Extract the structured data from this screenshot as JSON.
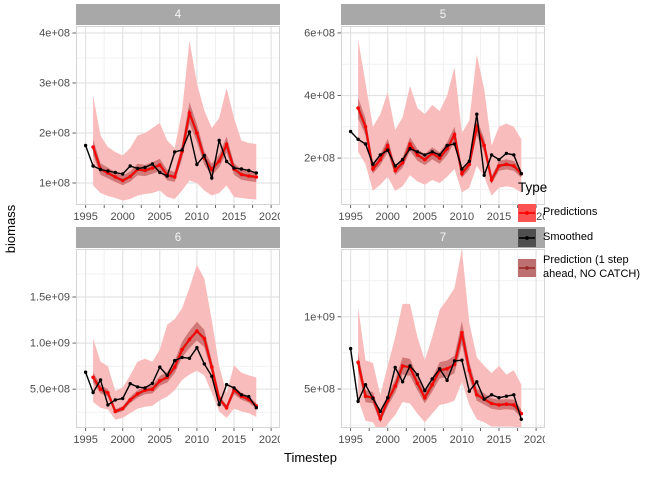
{
  "figure": {
    "y_axis_title": "biomass",
    "x_axis_title": "Timestep"
  },
  "legend": {
    "title": "Type",
    "items": [
      {
        "label": "Predictions",
        "fill": "#fb5252",
        "line": "#ff0000"
      },
      {
        "label": "Smoothed",
        "fill": "#4f4f4f",
        "line": "#000000"
      },
      {
        "label": "Prediction (1 step\n ahead, NO CATCH)",
        "fill": "#bc7070",
        "line": "#9b2a2a"
      }
    ]
  },
  "colors": {
    "prediction_line": "#ff0000",
    "smoothed_line": "#000000",
    "one_step_line": "#8b2222",
    "prediction_ribbon": "#f9bcbc",
    "one_step_band": "rgba(160,40,40,0.45)",
    "grid_major": "#e3e3e3",
    "grid_minor": "#f1f1f1",
    "panel_border": "#d5d5d5",
    "tick_text": "#4d4d4d",
    "strip_fill": "#a8a8a8",
    "strip_text": "#f5f5f5"
  },
  "chart_data": {
    "type": "line",
    "units": "values in 1e8 biomass",
    "band_frac": 0.09,
    "x": {
      "xlim": [
        1993.7,
        2021.2
      ],
      "ticks": [
        1995,
        2000,
        2005,
        2010,
        2015,
        2020
      ],
      "minor": [
        1997.5,
        2002.5,
        2007.5,
        2012.5,
        2017.5
      ],
      "smoothed_years": [
        1995,
        1996,
        1997,
        1998,
        1999,
        2000,
        2001,
        2002,
        2003,
        2004,
        2005,
        2006,
        2007,
        2008,
        2009,
        2010,
        2011,
        2012,
        2013,
        2014,
        2015,
        2016,
        2017,
        2018
      ],
      "prediction_years": [
        1996,
        1997,
        1998,
        1999,
        2000,
        2001,
        2002,
        2003,
        2004,
        2005,
        2006,
        2007,
        2008,
        2009,
        2010,
        2011,
        2012,
        2013,
        2014,
        2015,
        2016,
        2017,
        2018
      ]
    },
    "facets": [
      {
        "label": "4",
        "ylim": [
          0.56,
          4.14
        ],
        "yticks": [
          {
            "v": 1,
            "label": "1e+08"
          },
          {
            "v": 2,
            "label": "2e+08"
          },
          {
            "v": 3,
            "label": "3e+08"
          },
          {
            "v": 4,
            "label": "4e+08"
          }
        ],
        "yminor": [
          1.5,
          2.5,
          3.5
        ],
        "smoothed": [
          1.75,
          1.34,
          1.27,
          1.24,
          1.21,
          1.18,
          1.34,
          1.29,
          1.31,
          1.38,
          1.21,
          1.14,
          1.62,
          1.66,
          2.02,
          1.37,
          1.55,
          1.1,
          1.85,
          1.43,
          1.3,
          1.28,
          1.25,
          1.2
        ],
        "predictions": [
          1.72,
          1.28,
          1.2,
          1.12,
          1.05,
          1.13,
          1.27,
          1.25,
          1.3,
          1.36,
          1.16,
          1.12,
          1.63,
          2.4,
          2.0,
          1.5,
          1.27,
          1.44,
          1.77,
          1.28,
          1.17,
          1.14,
          1.12
        ],
        "ribbon_upper": [
          2.75,
          1.95,
          1.72,
          1.62,
          1.55,
          1.7,
          1.95,
          2.0,
          2.1,
          2.2,
          1.85,
          1.7,
          2.45,
          3.85,
          3.0,
          2.45,
          2.1,
          2.3,
          2.9,
          2.3,
          1.85,
          1.8,
          1.78
        ],
        "ribbon_lower": [
          0.95,
          0.8,
          0.74,
          0.7,
          0.65,
          0.68,
          0.75,
          0.78,
          0.8,
          0.85,
          0.72,
          0.68,
          0.85,
          1.05,
          1.0,
          0.85,
          0.75,
          0.8,
          0.95,
          0.72,
          0.7,
          0.68,
          0.67
        ]
      },
      {
        "label": "5",
        "ylim": [
          0.5,
          6.22
        ],
        "yticks": [
          {
            "v": 2,
            "label": "2e+08"
          },
          {
            "v": 4,
            "label": "4e+08"
          },
          {
            "v": 6,
            "label": "6e+08"
          }
        ],
        "yminor": [
          1,
          3,
          5
        ],
        "smoothed": [
          2.85,
          2.6,
          2.45,
          1.8,
          2.1,
          2.25,
          1.75,
          1.95,
          2.3,
          2.2,
          2.1,
          2.2,
          2.1,
          2.4,
          2.45,
          1.65,
          1.9,
          3.4,
          1.45,
          2.1,
          1.95,
          2.15,
          2.1,
          1.5
        ],
        "predictions": [
          3.6,
          3.0,
          1.65,
          1.95,
          2.4,
          1.6,
          1.85,
          2.45,
          2.1,
          1.95,
          2.15,
          2.0,
          2.3,
          2.75,
          1.5,
          1.8,
          3.0,
          2.4,
          1.3,
          1.75,
          1.8,
          1.75,
          1.5
        ],
        "ribbon_upper": [
          5.8,
          4.4,
          3.0,
          3.4,
          4.1,
          2.9,
          3.3,
          4.3,
          3.6,
          3.4,
          3.7,
          3.5,
          4.0,
          4.9,
          2.8,
          3.2,
          5.3,
          4.2,
          2.4,
          3.0,
          3.1,
          3.0,
          2.6
        ],
        "ribbon_lower": [
          2.2,
          1.8,
          0.95,
          1.15,
          1.4,
          0.95,
          1.1,
          1.45,
          1.25,
          1.15,
          1.3,
          1.2,
          1.4,
          1.65,
          0.9,
          1.05,
          1.75,
          1.4,
          0.8,
          1.05,
          1.1,
          1.05,
          0.9
        ]
      },
      {
        "label": "6",
        "ylim": [
          0.8,
          20.2
        ],
        "yticks": [
          {
            "v": 5,
            "label": "5.0e+08"
          },
          {
            "v": 10,
            "label": "1.0e+09"
          },
          {
            "v": 15,
            "label": "1.5e+09"
          }
        ],
        "yminor": [
          2.5,
          7.5,
          12.5,
          17.5
        ],
        "smoothed": [
          6.85,
          4.65,
          6.0,
          3.3,
          3.85,
          4.0,
          5.6,
          5.25,
          5.15,
          5.65,
          7.4,
          6.5,
          8.1,
          8.45,
          8.35,
          9.5,
          7.75,
          6.4,
          3.35,
          5.5,
          5.15,
          4.4,
          4.2,
          3.0
        ],
        "predictions": [
          6.3,
          5.0,
          4.6,
          2.6,
          2.9,
          3.85,
          4.5,
          4.9,
          5.0,
          5.9,
          6.3,
          7.4,
          9.3,
          10.4,
          11.3,
          10.5,
          7.4,
          4.0,
          3.0,
          4.9,
          4.25,
          3.9,
          3.2
        ],
        "ribbon_upper": [
          10.5,
          8.0,
          7.5,
          4.8,
          5.2,
          6.5,
          8.0,
          8.3,
          8.0,
          9.3,
          12.0,
          12.6,
          13.8,
          16.0,
          18.5,
          17.0,
          12.5,
          7.5,
          4.6,
          7.6,
          6.8,
          6.5,
          6.3
        ],
        "ribbon_lower": [
          3.6,
          3.0,
          2.8,
          1.7,
          1.9,
          2.4,
          2.9,
          3.1,
          3.2,
          3.8,
          4.2,
          4.9,
          6.0,
          6.6,
          7.0,
          6.5,
          4.6,
          2.6,
          1.9,
          2.9,
          2.6,
          2.4,
          2.0
        ]
      },
      {
        "label": "7",
        "ylim": [
          2.3,
          14.7
        ],
        "yticks": [
          {
            "v": 5,
            "label": "5e+08"
          },
          {
            "v": 10,
            "label": "1e+09"
          }
        ],
        "yminor": [
          2.5,
          7.5,
          12.5
        ],
        "smoothed": [
          7.8,
          4.15,
          5.3,
          4.35,
          3.45,
          4.4,
          6.5,
          5.5,
          6.6,
          6.0,
          4.9,
          5.7,
          6.4,
          5.6,
          6.95,
          7.0,
          4.85,
          5.5,
          4.3,
          4.6,
          4.4,
          4.5,
          4.6,
          2.9
        ],
        "predictions": [
          6.85,
          4.5,
          4.4,
          2.95,
          4.2,
          5.2,
          6.6,
          6.5,
          5.4,
          4.4,
          5.3,
          6.3,
          6.4,
          6.7,
          8.9,
          6.3,
          4.6,
          4.3,
          4.0,
          3.9,
          3.95,
          3.9,
          3.3
        ],
        "ribbon_upper": [
          10.7,
          7.0,
          6.8,
          4.6,
          6.6,
          8.6,
          10.9,
          10.9,
          8.6,
          7.0,
          8.6,
          10.5,
          11.2,
          12.0,
          14.7,
          9.6,
          7.2,
          6.6,
          6.1,
          6.6,
          6.0,
          6.3,
          5.3
        ],
        "ribbon_lower": [
          4.3,
          2.8,
          2.7,
          1.8,
          2.6,
          3.2,
          4.1,
          4.0,
          3.3,
          2.7,
          3.3,
          3.9,
          4.0,
          4.2,
          5.5,
          3.9,
          2.9,
          2.7,
          2.4,
          2.4,
          2.4,
          2.4,
          2.0
        ]
      }
    ]
  }
}
